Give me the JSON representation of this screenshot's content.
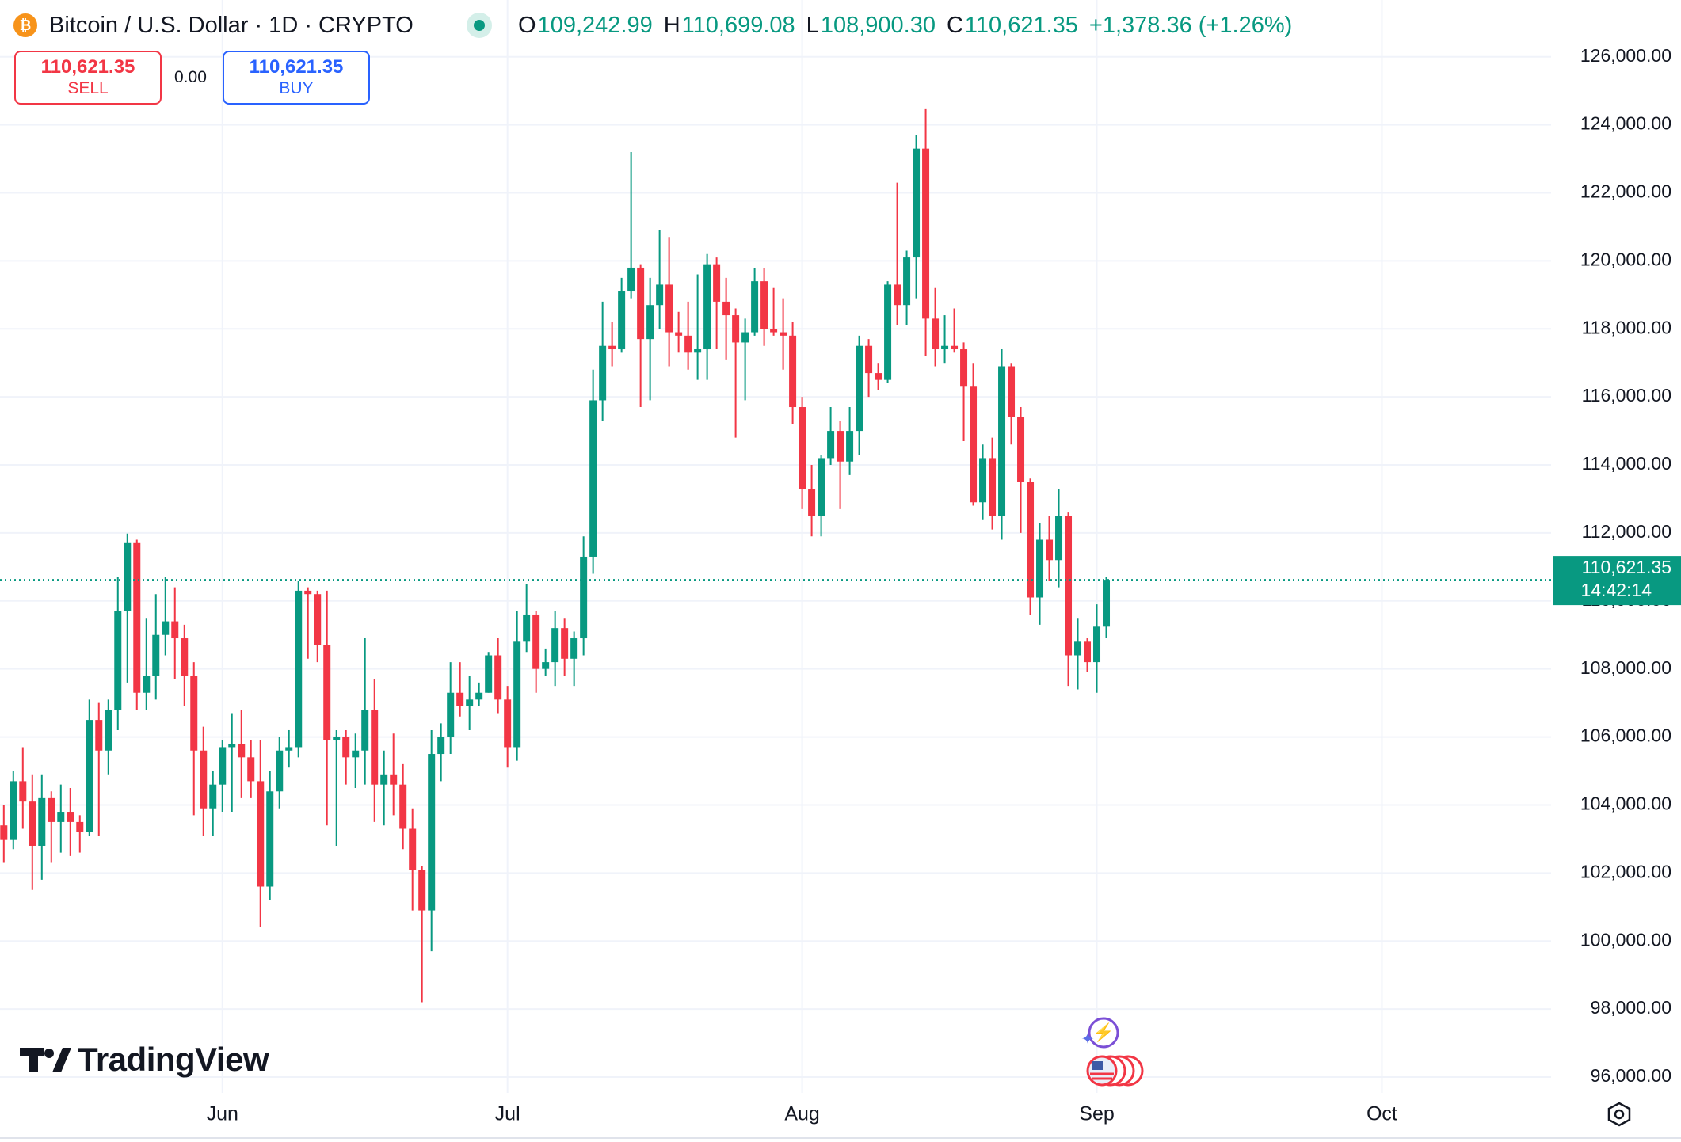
{
  "header": {
    "symbol": "Bitcoin / U.S. Dollar · 1D · CRYPTO",
    "open_key": "O",
    "open": "109,242.99",
    "high_key": "H",
    "high": "110,699.08",
    "low_key": "L",
    "low": "108,900.30",
    "close_key": "C",
    "close": "110,621.35",
    "change": "+1,378.36 (+1.26%)"
  },
  "trade": {
    "sell_price": "110,621.35",
    "sell": "SELL",
    "spread": "0.00",
    "buy_price": "110,621.35",
    "buy": "BUY"
  },
  "logo": "TradingView",
  "chart_data": {
    "type": "candlestick",
    "x": [
      0,
      1,
      2,
      3,
      4,
      5,
      6,
      7,
      8,
      9,
      10,
      11,
      12,
      13,
      14,
      15,
      16,
      17,
      18,
      19,
      20,
      21,
      22,
      23,
      24,
      25,
      26,
      27,
      28,
      29,
      30,
      31,
      32,
      33,
      34,
      35,
      36,
      37,
      38,
      39,
      40,
      41,
      42,
      43,
      44,
      45,
      46,
      47,
      48,
      49,
      50,
      51,
      52,
      53,
      54,
      55,
      56,
      57,
      58,
      59,
      60,
      61,
      62,
      63,
      64,
      65,
      66,
      67,
      68,
      69,
      70,
      71,
      72,
      73,
      74,
      75,
      76,
      77,
      78,
      79,
      80,
      81,
      82,
      83,
      84,
      85,
      86,
      87,
      88,
      89,
      90,
      91,
      92,
      93,
      94,
      95,
      96,
      97,
      98,
      99,
      100,
      101,
      102,
      103,
      104,
      105,
      106,
      107,
      108,
      109,
      110,
      111,
      112,
      113,
      114,
      115,
      116
    ],
    "open": [
      103400,
      102970,
      104700,
      104100,
      102800,
      104200,
      103500,
      103800,
      103500,
      103200,
      106500,
      105600,
      106800,
      109700,
      111700,
      107300,
      107800,
      109000,
      109400,
      108900,
      107800,
      105600,
      103900,
      104600,
      105700,
      105800,
      105400,
      104700,
      101600,
      104400,
      105600,
      105700,
      110300,
      110200,
      108700,
      105900,
      106000,
      105400,
      105600,
      106800,
      104600,
      104900,
      104600,
      103300,
      102100,
      100900,
      105500,
      106000,
      107300,
      106900,
      107100,
      107300,
      108400,
      107100,
      105700,
      108800,
      109600,
      108000,
      108200,
      109200,
      108300,
      108900,
      111300,
      115900,
      117500,
      117400,
      119100,
      119800,
      117700,
      118700,
      119300,
      117900,
      117800,
      117300,
      117400,
      119900,
      118800,
      118400,
      117600,
      117900,
      119400,
      118000,
      117900,
      117800,
      115700,
      113300,
      112500,
      114200,
      115000,
      114100,
      115000,
      117500,
      116700,
      116500,
      119300,
      118700,
      120100,
      123300,
      118300,
      117400,
      117500,
      117400,
      116300,
      112900,
      114200,
      112500,
      116900,
      115400,
      113500,
      110100,
      111800,
      111200,
      112500,
      108400,
      108800,
      108200,
      109242.99
    ],
    "high": [
      104000,
      105000,
      105700,
      104900,
      104900,
      104400,
      104600,
      104500,
      103700,
      107100,
      107000,
      107100,
      110700,
      111980,
      111800,
      109500,
      110200,
      110700,
      110400,
      109300,
      108200,
      106300,
      105000,
      105900,
      106700,
      106800,
      105900,
      105900,
      105000,
      106000,
      106200,
      110600,
      110400,
      110300,
      110300,
      106200,
      106200,
      106100,
      108900,
      107700,
      105600,
      106100,
      105200,
      103900,
      102200,
      106200,
      106400,
      108200,
      108200,
      107800,
      107600,
      108500,
      108900,
      107500,
      109700,
      110500,
      109700,
      108600,
      109700,
      109500,
      109100,
      111900,
      116800,
      118800,
      118200,
      119500,
      123200,
      119900,
      119500,
      120900,
      120700,
      118500,
      118800,
      119600,
      120200,
      120100,
      119500,
      118600,
      118300,
      119800,
      119800,
      119200,
      118900,
      118200,
      116000,
      114000,
      114300,
      115700,
      115300,
      115700,
      117800,
      117700,
      117000,
      119400,
      122300,
      120300,
      123700,
      124460,
      119200,
      118400,
      118600,
      117600,
      117000,
      114600,
      114800,
      117400,
      117000,
      115700,
      113600,
      112300,
      112500,
      113300,
      112600,
      109500,
      108900,
      109900,
      110699.08
    ],
    "low": [
      102300,
      102700,
      103300,
      101500,
      101800,
      102300,
      102600,
      102500,
      102600,
      103100,
      103100,
      104900,
      106200,
      107600,
      106800,
      106800,
      107100,
      108400,
      107700,
      106900,
      103700,
      103100,
      103100,
      103800,
      103800,
      104200,
      104200,
      100400,
      101200,
      103900,
      105100,
      105400,
      108300,
      108200,
      103400,
      102800,
      104600,
      104500,
      104600,
      103500,
      103400,
      103700,
      102700,
      100900,
      98200,
      99700,
      104700,
      105500,
      106600,
      106200,
      106900,
      107300,
      106700,
      105100,
      105300,
      108500,
      107300,
      107800,
      107500,
      107800,
      107500,
      108400,
      110800,
      115300,
      116900,
      117300,
      118900,
      115700,
      115900,
      118000,
      116900,
      117300,
      116800,
      116500,
      116500,
      117400,
      117100,
      114800,
      115900,
      117800,
      117500,
      117800,
      116800,
      115200,
      112700,
      111900,
      111900,
      114000,
      112700,
      113700,
      114300,
      116000,
      116200,
      116400,
      118100,
      118100,
      118900,
      117200,
      116900,
      117000,
      117300,
      114700,
      112800,
      112400,
      112100,
      111800,
      114600,
      112000,
      109600,
      109300,
      110600,
      110400,
      107500,
      107400,
      107900,
      107300,
      108900.3
    ],
    "close": [
      102970,
      104700,
      104100,
      102800,
      104200,
      103500,
      103800,
      103500,
      103200,
      106500,
      105600,
      106800,
      109700,
      111700,
      107300,
      107800,
      109000,
      109400,
      108900,
      107800,
      105600,
      103900,
      104600,
      105700,
      105800,
      105400,
      104700,
      101600,
      104400,
      105600,
      105700,
      110300,
      110200,
      108700,
      105900,
      106000,
      105400,
      105600,
      106800,
      104600,
      104900,
      104600,
      103300,
      102100,
      100900,
      105500,
      106000,
      107300,
      106900,
      107100,
      107300,
      108400,
      107100,
      105700,
      108800,
      109600,
      108000,
      108200,
      109200,
      108300,
      108900,
      111300,
      115900,
      117500,
      117400,
      119100,
      119800,
      117700,
      118700,
      119300,
      117900,
      117800,
      117300,
      117400,
      119900,
      118800,
      118400,
      117600,
      117900,
      119400,
      118000,
      117900,
      117800,
      115700,
      113300,
      112500,
      114200,
      115000,
      114100,
      115000,
      117500,
      116700,
      116500,
      119300,
      118700,
      120100,
      123300,
      118300,
      117400,
      117500,
      117400,
      116300,
      112900,
      114200,
      112500,
      116900,
      115400,
      113500,
      110100,
      111800,
      111200,
      112500,
      108400,
      108800,
      108200,
      109242.99,
      110621.35
    ],
    "up_color": "#089981",
    "down_color": "#f23645",
    "xlim": [
      -0.4,
      162.8
    ],
    "xticks": [
      {
        "value": 23,
        "label": "Jun"
      },
      {
        "value": 53,
        "label": "Jul"
      },
      {
        "value": 84,
        "label": "Aug"
      },
      {
        "value": 115,
        "label": "Sep"
      },
      {
        "value": 145,
        "label": "Oct"
      }
    ],
    "ylim": [
      95534,
      127670
    ],
    "yticks": [
      {
        "value": 96000,
        "label": "96,000.00"
      },
      {
        "value": 98000,
        "label": "98,000.00"
      },
      {
        "value": 100000,
        "label": "100,000.00"
      },
      {
        "value": 102000,
        "label": "102,000.00"
      },
      {
        "value": 104000,
        "label": "104,000.00"
      },
      {
        "value": 106000,
        "label": "106,000.00"
      },
      {
        "value": 108000,
        "label": "108,000.00"
      },
      {
        "value": 110000,
        "label": "110,000.00"
      },
      {
        "value": 112000,
        "label": "112,000.00"
      },
      {
        "value": 114000,
        "label": "114,000.00"
      },
      {
        "value": 116000,
        "label": "116,000.00"
      },
      {
        "value": 118000,
        "label": "118,000.00"
      },
      {
        "value": 120000,
        "label": "120,000.00"
      },
      {
        "value": 122000,
        "label": "122,000.00"
      },
      {
        "value": 124000,
        "label": "124,000.00"
      },
      {
        "value": 126000,
        "label": "126,000.00"
      }
    ],
    "grid": true,
    "last_price": {
      "value": 110621.35,
      "label": "110,621.35"
    },
    "countdown": "14:42:14"
  }
}
